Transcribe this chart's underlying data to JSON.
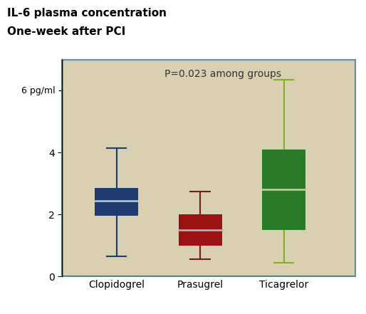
{
  "title_line1": "IL-6 plasma concentration",
  "title_line2": "One-week after PCI",
  "annotation": "P=0.023 among groups",
  "groups": [
    "Clopidogrel",
    "Prasugrel",
    "Ticagrelor"
  ],
  "box_colors": [
    "#1e3a6e",
    "#991111",
    "#2a7a2a"
  ],
  "whisker_colors": [
    "#1e3a6e",
    "#7a1a1a",
    "#8aaa2a"
  ],
  "median_colors": [
    "#b8cce0",
    "#c8b0b0",
    "#c8d0a0"
  ],
  "boxes": [
    {
      "whislo": 0.65,
      "q1": 1.95,
      "med": 2.45,
      "q3": 2.85,
      "whishi": 4.15
    },
    {
      "whislo": 0.55,
      "q1": 1.0,
      "med": 1.5,
      "q3": 2.0,
      "whishi": 2.75
    },
    {
      "whislo": 0.45,
      "q1": 1.5,
      "med": 2.8,
      "q3": 4.1,
      "whishi": 6.35
    }
  ],
  "ylim": [
    0,
    7.0
  ],
  "yticks": [
    0,
    2,
    4
  ],
  "y6_label": "6 pg/ml",
  "plot_bg_color": "#d8d0b0",
  "outer_bg": "#ffffff",
  "border_color": "#6090a8",
  "box_width": 0.52,
  "figsize": [
    5.14,
    4.41
  ],
  "dpi": 100
}
